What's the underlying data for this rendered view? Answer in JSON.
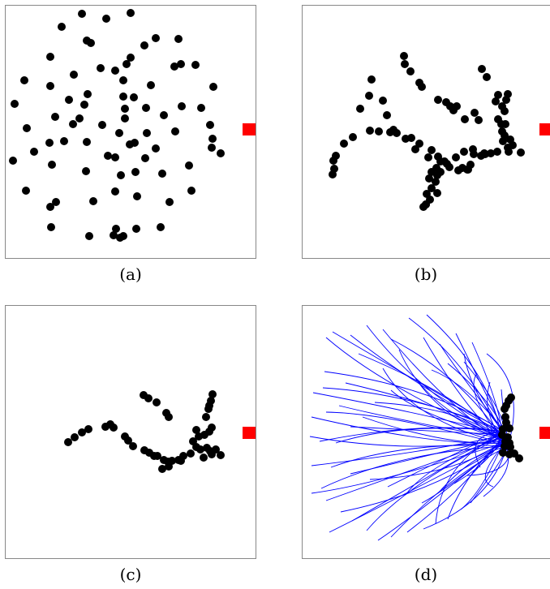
{
  "panels": [
    {
      "label": "(a)"
    },
    {
      "label": "(b)"
    },
    {
      "label": "(c)"
    },
    {
      "label": "(d)"
    }
  ],
  "colors": {
    "frame": "#888888",
    "agent": "#000000",
    "target": "#ff0000",
    "trajectory": "#0000ff"
  }
}
